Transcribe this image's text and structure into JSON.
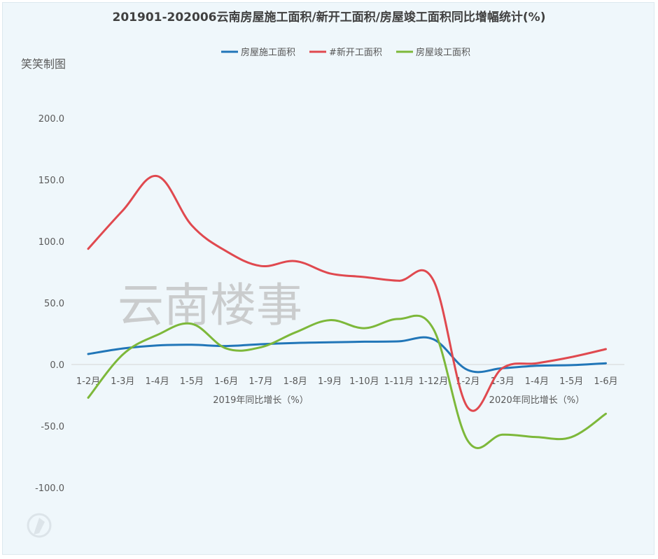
{
  "chart_data": {
    "type": "line",
    "title": "201901-202006云南房屋施工面积/新开工面积/房屋竣工面积同比增幅统计(%)",
    "subtitle": "笑笑制图",
    "watermark": "云南楼事",
    "categories": [
      "1-2月",
      "1-3月",
      "1-4月",
      "1-5月",
      "1-6月",
      "1-7月",
      "1-8月",
      "1-9月",
      "1-10月",
      "1-11月",
      "1-12月",
      "1-2月",
      "1-3月",
      "1-4月",
      "1-5月",
      "1-6月"
    ],
    "group_labels": [
      {
        "text": "2019年同比增长（%）",
        "from": 0,
        "to": 10
      },
      {
        "text": "2020年同比增长（%）",
        "from": 11,
        "to": 15
      }
    ],
    "ylim": [
      -100,
      200
    ],
    "yticks": [
      200,
      150,
      100,
      50,
      0,
      -50,
      -100
    ],
    "ytick_labels": [
      "200.0",
      "150.0",
      "100.0",
      "50.0",
      "0.0",
      "-50.0",
      "-100.0"
    ],
    "grid": false,
    "legend_position": "top-center",
    "series": [
      {
        "name": "房屋施工面积",
        "color": "#2176b8",
        "values": [
          8.5,
          13.0,
          15.5,
          16.0,
          15.0,
          16.5,
          17.5,
          18.0,
          18.5,
          18.8,
          20.5,
          -4.5,
          -3.0,
          -1.0,
          -0.5,
          1.0
        ]
      },
      {
        "name": "#新开工面积",
        "color": "#e0494f",
        "values": [
          94.0,
          125.0,
          153.0,
          113.0,
          92.0,
          80.0,
          84.0,
          74.0,
          71.0,
          68.0,
          68.5,
          -35.0,
          -3.0,
          1.0,
          6.0,
          12.5
        ]
      },
      {
        "name": "房屋竣工面积",
        "color": "#7db83a",
        "values": [
          -27.0,
          8.0,
          24.0,
          33.0,
          13.0,
          14.0,
          26.0,
          36.0,
          29.5,
          37.0,
          29.0,
          -62.0,
          -57.0,
          -59.0,
          -59.0,
          -40.0
        ]
      }
    ]
  }
}
